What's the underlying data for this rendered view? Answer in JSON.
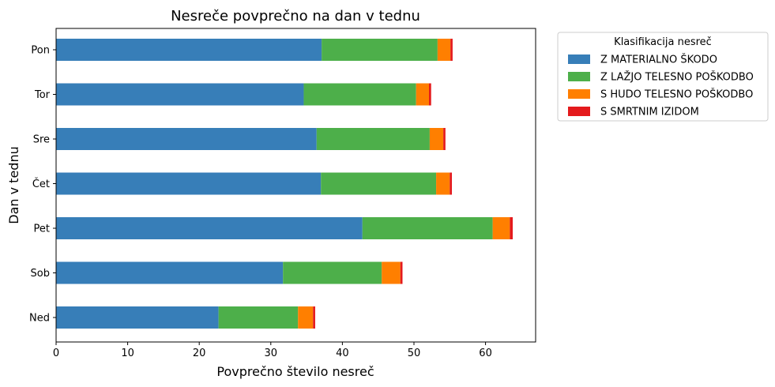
{
  "chart_data": {
    "type": "bar",
    "orientation": "horizontal",
    "stacked": true,
    "title": "Nesreče povprečno na dan v tednu",
    "xlabel": "Povprečno število nesreč",
    "ylabel": "Dan v tednu",
    "xlim": [
      0,
      67
    ],
    "xticks": [
      0,
      10,
      20,
      30,
      40,
      50,
      60
    ],
    "categories": [
      "Pon",
      "Tor",
      "Sre",
      "Čet",
      "Pet",
      "Sob",
      "Ned"
    ],
    "legend": {
      "title": "Klasifikacija nesreč",
      "placement": "outside-top-right"
    },
    "series": [
      {
        "name": "Z MATERIALNO ŠKODO",
        "color": "#377eb8",
        "values": [
          37.1,
          34.6,
          36.4,
          37.0,
          42.8,
          31.7,
          22.7
        ]
      },
      {
        "name": "Z LAŽJO TELESNO POŠKODBO",
        "color": "#4daf4a",
        "values": [
          16.2,
          15.7,
          15.8,
          16.1,
          18.2,
          13.8,
          11.1
        ]
      },
      {
        "name": "S HUDO TELESNO POŠKODBO",
        "color": "#ff7f00",
        "values": [
          1.8,
          1.8,
          1.9,
          1.9,
          2.4,
          2.6,
          2.1
        ]
      },
      {
        "name": "S SMRTNIM IZIDOM",
        "color": "#e41a1c",
        "values": [
          0.3,
          0.3,
          0.3,
          0.3,
          0.4,
          0.3,
          0.3
        ]
      }
    ]
  }
}
